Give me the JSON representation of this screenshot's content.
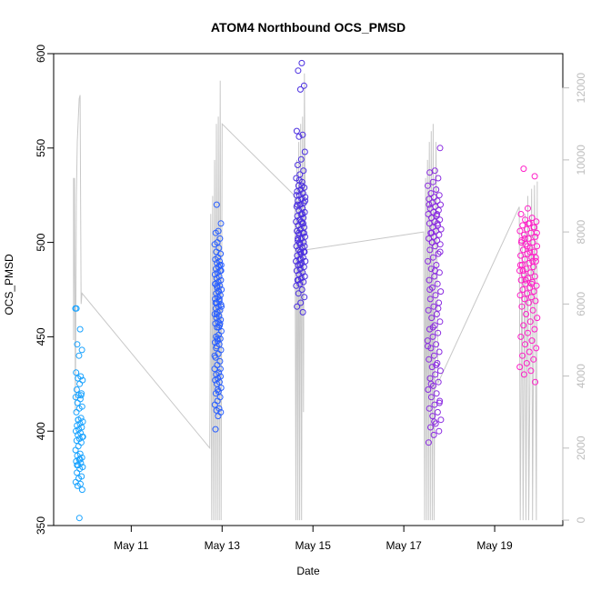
{
  "chart_data": {
    "type": "scatter",
    "title": "ATOM4 Northbound OCS_PMSD",
    "xlabel": "Date",
    "ylabel": "OCS_PMSD",
    "xlim": [
      "2024-05-09T07:00",
      "2024-05-20T12:00"
    ],
    "ylim": [
      350,
      600
    ],
    "y2lim": [
      -150,
      12950
    ],
    "x_ticks": [
      {
        "date": "2024-05-11",
        "label": "May 11"
      },
      {
        "date": "2024-05-13",
        "label": "May 13"
      },
      {
        "date": "2024-05-15",
        "label": "May 15"
      },
      {
        "date": "2024-05-17",
        "label": "May 17"
      },
      {
        "date": "2024-05-19",
        "label": "May 19"
      }
    ],
    "y_ticks": [
      350,
      400,
      450,
      500,
      550,
      600
    ],
    "y2_ticks": [
      0,
      2000,
      4000,
      6000,
      8000,
      10000,
      12000
    ],
    "grid": false,
    "legend": "none",
    "series": [
      {
        "color": "#1aa3ff",
        "start": "2024-05-09T18:30",
        "end": "2024-05-09T22:30",
        "points": [
          465,
          454,
          446,
          443,
          440,
          431,
          429,
          428,
          427,
          425,
          422,
          420,
          419,
          418,
          417,
          415,
          413,
          412,
          410,
          407,
          406,
          405,
          404,
          403,
          402,
          401,
          400,
          399,
          398,
          397,
          396,
          395,
          394,
          392,
          390,
          388,
          387,
          386,
          385,
          384,
          383,
          382,
          381,
          380,
          378,
          376,
          375,
          373,
          372,
          371,
          369,
          354,
          465,
          419,
          406,
          397,
          385,
          382
        ]
      },
      {
        "color": "#2a5fff",
        "start": "2024-05-12T20:00",
        "end": "2024-05-12T23:40",
        "points": [
          520,
          510,
          506,
          505,
          502,
          500,
          499,
          497,
          495,
          494,
          492,
          491,
          490,
          489,
          488,
          487,
          486,
          485,
          484,
          483,
          482,
          481,
          480,
          479,
          478,
          477,
          476,
          475,
          474,
          473,
          472,
          471,
          470,
          469,
          468,
          467,
          466,
          465,
          464,
          463,
          462,
          461,
          460,
          459,
          458,
          457,
          456,
          455,
          453,
          451,
          450,
          449,
          448,
          447,
          446,
          445,
          443,
          441,
          439,
          437,
          435,
          433,
          431,
          430,
          429,
          428,
          427,
          426,
          425,
          423,
          421,
          420,
          418,
          416,
          414,
          412,
          411,
          410,
          408,
          401,
          488,
          477,
          466,
          455,
          444,
          433,
          422,
          478,
          470,
          462,
          485,
          474,
          468,
          457,
          449,
          440
        ]
      },
      {
        "color": "#4a2ee0",
        "start": "2024-05-14T15:00",
        "end": "2024-05-14T20:00",
        "points": [
          595,
          591,
          583,
          581,
          559,
          557,
          556,
          548,
          544,
          541,
          538,
          536,
          534,
          532,
          530,
          529,
          528,
          527,
          526,
          525,
          524,
          523,
          522,
          521,
          520,
          519,
          518,
          517,
          516,
          515,
          514,
          513,
          512,
          511,
          510,
          509,
          508,
          507,
          506,
          505,
          504,
          503,
          502,
          501,
          500,
          499,
          498,
          497,
          496,
          495,
          494,
          493,
          492,
          491,
          490,
          489,
          488,
          487,
          486,
          485,
          484,
          483,
          482,
          481,
          480,
          479,
          478,
          477,
          475,
          473,
          471,
          468,
          466,
          463,
          533,
          522,
          511,
          502,
          495,
          488,
          525,
          515,
          505,
          498,
          491,
          520,
          510,
          500,
          490,
          530,
          480,
          505,
          495
        ]
      },
      {
        "color": "#8a2be0",
        "start": "2024-05-17T12:30",
        "end": "2024-05-17T19:40",
        "points": [
          550,
          538,
          537,
          534,
          532,
          530,
          528,
          526,
          525,
          524,
          523,
          522,
          521,
          520,
          519,
          518,
          517,
          516,
          515,
          514,
          513,
          512,
          511,
          510,
          509,
          508,
          507,
          506,
          505,
          504,
          503,
          502,
          501,
          500,
          499,
          498,
          496,
          494,
          492,
          490,
          488,
          486,
          484,
          482,
          480,
          478,
          476,
          474,
          472,
          470,
          468,
          466,
          464,
          462,
          460,
          458,
          456,
          454,
          452,
          450,
          448,
          446,
          444,
          442,
          440,
          438,
          436,
          434,
          432,
          430,
          428,
          426,
          424,
          422,
          420,
          418,
          416,
          414,
          412,
          410,
          408,
          406,
          404,
          402,
          400,
          398,
          394,
          515,
          505,
          495,
          485,
          475,
          465,
          455,
          445,
          435,
          425,
          415,
          405,
          520,
          510,
          500
        ]
      },
      {
        "color": "#ff1fc8",
        "start": "2024-05-19T13:00",
        "end": "2024-05-19T22:30",
        "points": [
          539,
          535,
          518,
          515,
          513,
          512,
          511,
          510,
          509,
          508,
          507,
          506,
          505,
          504,
          503,
          502,
          501,
          500,
          499,
          498,
          497,
          496,
          495,
          494,
          493,
          492,
          491,
          490,
          489,
          488,
          487,
          486,
          485,
          484,
          483,
          482,
          481,
          480,
          479,
          478,
          477,
          476,
          475,
          474,
          473,
          472,
          471,
          470,
          469,
          468,
          466,
          464,
          462,
          460,
          458,
          456,
          454,
          452,
          450,
          448,
          446,
          444,
          442,
          440,
          438,
          436,
          434,
          432,
          430,
          426,
          510,
          500,
          490,
          480,
          505,
          495,
          485,
          508,
          498,
          488,
          478,
          502,
          492
        ]
      }
    ],
    "secondary_line": {
      "color": "#c8c8c8",
      "axis": "right",
      "path": [
        [
          "2024-05-09T17:30",
          9500
        ],
        [
          "2024-05-09T17:30",
          5000
        ],
        [
          "2024-05-09T18:00",
          9500
        ],
        [
          "2024-05-09T18:30",
          3000
        ],
        [
          "2024-05-09T19:00",
          9000
        ],
        [
          "2024-05-09T19:30",
          10500
        ],
        [
          "2024-05-09T20:30",
          11700
        ],
        [
          "2024-05-09T21:00",
          11800
        ],
        [
          "2024-05-09T21:30",
          6000
        ],
        [
          "2024-05-09T22:00",
          6300
        ],
        [
          "2024-05-12T17:30",
          2000
        ],
        [
          "2024-05-12T18:00",
          8500
        ],
        [
          "2024-05-12T18:30",
          0
        ],
        [
          "2024-05-12T19:00",
          9000
        ],
        [
          "2024-05-12T19:30",
          0
        ],
        [
          "2024-05-12T20:00",
          10000
        ],
        [
          "2024-05-12T20:30",
          0
        ],
        [
          "2024-05-12T21:00",
          11000
        ],
        [
          "2024-05-12T21:30",
          0
        ],
        [
          "2024-05-12T22:00",
          11200
        ],
        [
          "2024-05-12T22:30",
          0
        ],
        [
          "2024-05-12T23:00",
          12200
        ],
        [
          "2024-05-12T23:30",
          0
        ],
        [
          "2024-05-13T00:00",
          11000
        ],
        [
          "2024-05-14T14:30",
          9000
        ],
        [
          "2024-05-14T15:00",
          0
        ],
        [
          "2024-05-14T15:30",
          10000
        ],
        [
          "2024-05-14T16:00",
          0
        ],
        [
          "2024-05-14T16:30",
          10500
        ],
        [
          "2024-05-14T17:00",
          0
        ],
        [
          "2024-05-14T17:30",
          11000
        ],
        [
          "2024-05-14T18:00",
          0
        ],
        [
          "2024-05-14T18:30",
          11200
        ],
        [
          "2024-05-14T19:00",
          3000
        ],
        [
          "2024-05-14T19:30",
          12400
        ],
        [
          "2024-05-14T20:00",
          7500
        ],
        [
          "2024-05-17T10:30",
          8000
        ],
        [
          "2024-05-17T11:00",
          0
        ],
        [
          "2024-05-17T11:30",
          9500
        ],
        [
          "2024-05-17T12:00",
          0
        ],
        [
          "2024-05-17T12:30",
          10000
        ],
        [
          "2024-05-17T13:00",
          0
        ],
        [
          "2024-05-17T13:30",
          10500
        ],
        [
          "2024-05-17T14:00",
          0
        ],
        [
          "2024-05-17T14:30",
          10800
        ],
        [
          "2024-05-17T15:00",
          0
        ],
        [
          "2024-05-17T15:30",
          11000
        ],
        [
          "2024-05-17T16:00",
          0
        ],
        [
          "2024-05-17T17:00",
          10500
        ],
        [
          "2024-05-17T18:00",
          3800
        ],
        [
          "2024-05-19T13:00",
          8700
        ],
        [
          "2024-05-19T13:30",
          0
        ],
        [
          "2024-05-19T14:30",
          8000
        ],
        [
          "2024-05-19T15:00",
          0
        ],
        [
          "2024-05-19T16:00",
          8500
        ],
        [
          "2024-05-19T16:30",
          0
        ],
        [
          "2024-05-19T17:30",
          9000
        ],
        [
          "2024-05-19T18:00",
          0
        ],
        [
          "2024-05-19T19:30",
          9200
        ],
        [
          "2024-05-19T20:00",
          0
        ],
        [
          "2024-05-19T21:00",
          9300
        ],
        [
          "2024-05-19T22:00",
          0
        ],
        [
          "2024-05-19T22:30",
          9400
        ]
      ]
    }
  }
}
